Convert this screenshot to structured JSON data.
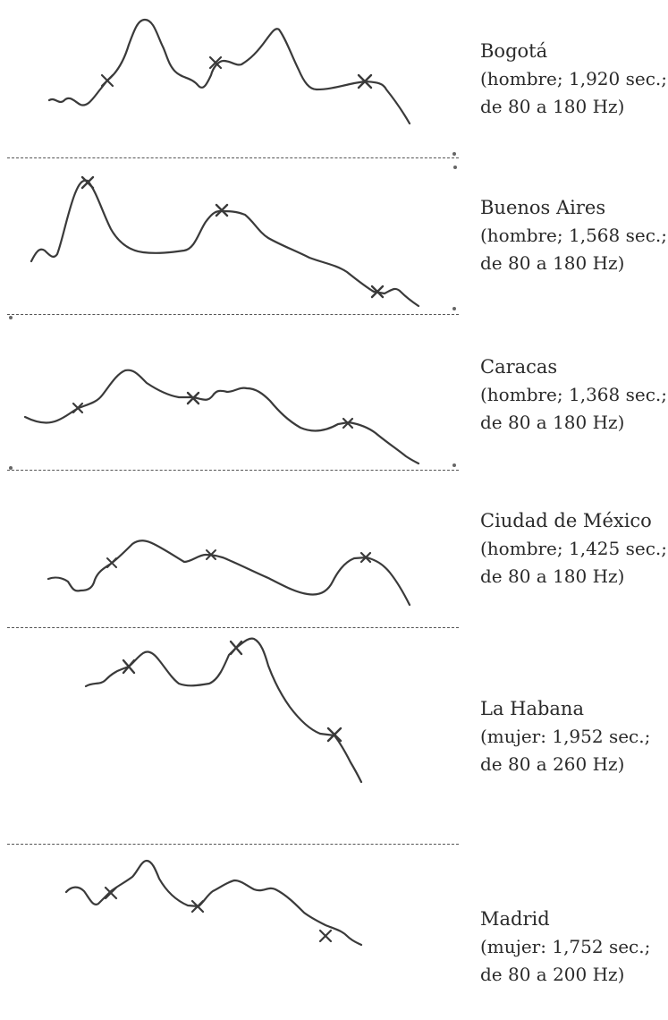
{
  "panels": [
    {
      "city": "Bogotá",
      "detail1": "(hombre; 1,920 sec.;",
      "detail2": "de 80 a 180 Hz)"
    },
    {
      "city": "Buenos Aires",
      "detail1": "(hombre; 1,568 sec.;",
      "detail2": "de 80 a 180 Hz)"
    },
    {
      "city": "Caracas",
      "detail1": "(hombre; 1,368 sec.;",
      "detail2": "de 80 a 180 Hz)"
    },
    {
      "city": "Ciudad de México",
      "detail1": "(hombre; 1,425 sec.;",
      "detail2": "de 80 a 180 Hz)"
    },
    {
      "city": "La Habana",
      "detail1": "(mujer: 1,952 sec.;",
      "detail2": "de 80 a 260 Hz)"
    },
    {
      "city": "Madrid",
      "detail1": "(mujer: 1,752 sec.;",
      "detail2": "de 80 a 200 Hz)"
    }
  ],
  "colors": {
    "curve": "#3a3a3a",
    "marker": "#3a3a3a",
    "divider": "#555555",
    "text": "#2a2a2a"
  }
}
